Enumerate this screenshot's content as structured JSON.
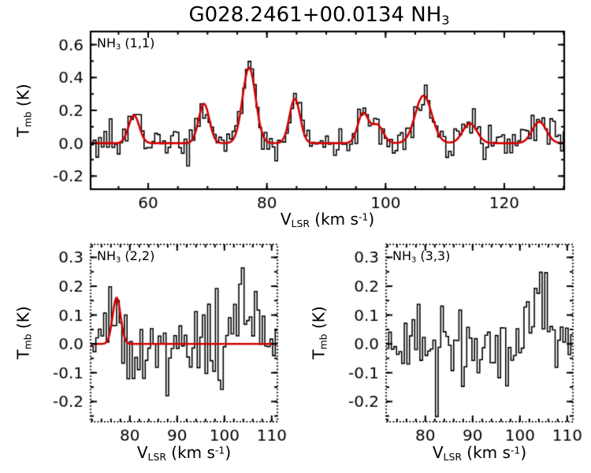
{
  "title": {
    "p1": "G028.2461+00.0134 NH",
    "sub": "3"
  },
  "axis_x": {
    "p1": "V",
    "sub": "LSR",
    "p2": " (km s",
    "sup": "-1",
    "p3": ")"
  },
  "axis_y": {
    "p1": "T",
    "sub": "mb",
    "p2": " (K)"
  },
  "chart_data": [
    {
      "type": "spectrum-histogram",
      "label": {
        "p1": "NH",
        "sub": "3",
        "p2": " (1,1)"
      },
      "xlabel": "V_LSR (km s^-1)",
      "ylabel": "T_mb (K)",
      "xlim": [
        50.3,
        130.1
      ],
      "ylim": [
        -0.28,
        0.68
      ],
      "xtick_values": [
        60,
        80,
        100,
        120
      ],
      "xtick_labels": [
        "60",
        "80",
        "100",
        "120"
      ],
      "ytick_values": [
        0.6,
        0.4,
        0.2,
        0.0,
        -0.2
      ],
      "ytick_labels": [
        "0.6",
        "0.4",
        "0.2",
        "0.0",
        "-0.2"
      ],
      "xminor_step": 5,
      "yminor_step": 0.1,
      "frame": "solid",
      "bin_width": 0.45,
      "noise_rms": 0.05,
      "seed": 7,
      "line_color": "#000000",
      "fit_color": "#d40000",
      "components": [
        {
          "v": 57.6,
          "amp": 0.17,
          "sig": 0.9
        },
        {
          "v": 69.4,
          "amp": 0.24,
          "sig": 0.9
        },
        {
          "v": 77.0,
          "amp": 0.46,
          "sig": 1.1
        },
        {
          "v": 84.7,
          "amp": 0.27,
          "sig": 0.9
        },
        {
          "v": 96.2,
          "amp": 0.18,
          "sig": 0.9
        },
        {
          "v": 98.6,
          "amp": 0.11,
          "sig": 1.0
        },
        {
          "v": 106.4,
          "amp": 0.29,
          "sig": 1.4
        },
        {
          "v": 114.2,
          "amp": 0.12,
          "sig": 1.2
        },
        {
          "v": 125.9,
          "amp": 0.13,
          "sig": 1.2
        }
      ],
      "fit_components": [
        {
          "v": 57.6,
          "amp": 0.17,
          "sig": 0.9
        },
        {
          "v": 69.4,
          "amp": 0.24,
          "sig": 0.9
        },
        {
          "v": 77.0,
          "amp": 0.46,
          "sig": 1.1
        },
        {
          "v": 84.7,
          "amp": 0.27,
          "sig": 0.9
        },
        {
          "v": 96.2,
          "amp": 0.18,
          "sig": 0.9
        },
        {
          "v": 98.6,
          "amp": 0.11,
          "sig": 1.0
        },
        {
          "v": 106.4,
          "amp": 0.29,
          "sig": 1.4
        },
        {
          "v": 114.2,
          "amp": 0.12,
          "sig": 1.2
        },
        {
          "v": 125.9,
          "amp": 0.13,
          "sig": 1.2
        }
      ]
    },
    {
      "type": "spectrum-histogram",
      "label": {
        "p1": "NH",
        "sub": "3",
        "p2": " (2,2)"
      },
      "xlabel": "V_LSR (km s^-1)",
      "ylabel": "T_mb (K)",
      "xlim": [
        71.7,
        111.2
      ],
      "ylim": [
        -0.27,
        0.345
      ],
      "xtick_values": [
        80,
        90,
        100,
        110
      ],
      "xtick_labels": [
        "80",
        "90",
        "100",
        "110"
      ],
      "ytick_values": [
        0.3,
        0.2,
        0.1,
        0.0,
        -0.1,
        -0.2
      ],
      "ytick_labels": [
        "0.3",
        "0.2",
        "0.1",
        "0.0",
        "-0.1",
        "-0.2"
      ],
      "xminor_step": 2,
      "yminor_step": 0.05,
      "frame": "dotted",
      "bin_width": 0.55,
      "noise_rms": 0.07,
      "seed": 13,
      "line_color": "#000000",
      "fit_color": "#d40000",
      "components": [
        {
          "v": 77.2,
          "amp": 0.16,
          "sig": 0.85
        },
        {
          "v": 104.8,
          "amp": 0.12,
          "sig": 2.2
        }
      ],
      "fit_components": [
        {
          "v": 77.2,
          "amp": 0.16,
          "sig": 0.85
        }
      ]
    },
    {
      "type": "spectrum-histogram",
      "label": {
        "p1": "NH",
        "sub": "3",
        "p2": " (3,3)"
      },
      "xlabel": "V_LSR (km s^-1)",
      "ylabel": "T_mb (K)",
      "xlim": [
        71.7,
        111.2
      ],
      "ylim": [
        -0.27,
        0.345
      ],
      "xtick_values": [
        80,
        90,
        100,
        110
      ],
      "xtick_labels": [
        "80",
        "90",
        "100",
        "110"
      ],
      "ytick_values": [
        0.3,
        0.2,
        0.1,
        0.0,
        -0.1,
        -0.2
      ],
      "ytick_labels": [
        "0.3",
        "0.2",
        "0.1",
        "0.0",
        "-0.1",
        "-0.2"
      ],
      "xminor_step": 2,
      "yminor_step": 0.05,
      "frame": "dotted",
      "bin_width": 0.55,
      "noise_rms": 0.07,
      "seed": 21,
      "line_color": "#000000",
      "fit_color": "#d40000",
      "components": [
        {
          "v": 103.9,
          "amp": 0.17,
          "sig": 1.7
        }
      ],
      "fit_components": []
    }
  ]
}
